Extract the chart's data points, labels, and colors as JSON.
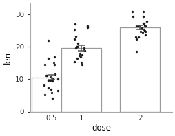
{
  "categories": [
    "0.5",
    "1",
    "2"
  ],
  "bar_means": [
    10.605,
    19.735,
    26.1
  ],
  "bar_errors": [
    0.79,
    0.83,
    0.61
  ],
  "jitter_data": {
    "0.5": [
      4.2,
      11.5,
      7.3,
      5.8,
      6.4,
      10.0,
      11.2,
      11.2,
      5.2,
      7.0,
      14.5,
      10.8,
      15.2,
      9.7,
      14.5,
      10.0,
      8.2,
      9.4,
      16.5,
      9.7,
      22.0,
      17.0
    ],
    "1": [
      16.5,
      15.2,
      17.6,
      22.5,
      17.3,
      20.0,
      19.7,
      23.3,
      25.5,
      26.4,
      14.5,
      15.5,
      18.8,
      19.7,
      20.0,
      21.2,
      19.0,
      17.0,
      20.0,
      18.0,
      27.0,
      26.0
    ],
    "2": [
      23.6,
      18.5,
      33.9,
      25.5,
      26.4,
      24.8,
      30.9,
      26.4,
      27.3,
      29.4,
      23.0,
      27.3,
      29.4,
      23.0,
      25.8,
      26.4,
      22.4,
      24.5,
      24.8,
      26.7,
      31.0,
      28.0,
      25.0
    ]
  },
  "bar_color": "#ffffff",
  "bar_edge_color": "#999999",
  "dot_color": "#1a1a1a",
  "error_color": "#555555",
  "bar_width": 0.68,
  "ylim": [
    0,
    33.5
  ],
  "yticks": [
    0,
    10,
    20,
    30
  ],
  "ylabel": "len",
  "xlabel": "dose",
  "background_color": "#ffffff",
  "jitter_spread": 0.13,
  "dot_size": 6,
  "spine_color": "#aaaaaa"
}
